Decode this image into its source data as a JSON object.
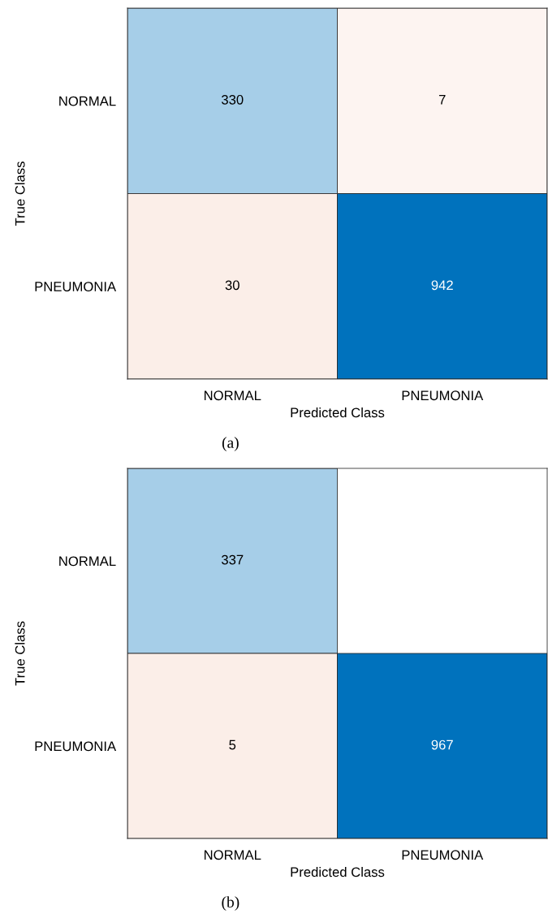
{
  "chart_data": [
    {
      "type": "heatmap",
      "title": "(a)",
      "xlabel": "Predicted Class",
      "ylabel": "True Class",
      "categories": [
        "NORMAL",
        "PNEUMONIA"
      ],
      "y_categories": [
        "NORMAL",
        "PNEUMONIA"
      ],
      "cells": [
        [
          330,
          7
        ],
        [
          30,
          942
        ]
      ],
      "data_labels": true
    },
    {
      "type": "heatmap",
      "title": "(b)",
      "xlabel": "Predicted Class",
      "ylabel": "True Class",
      "categories": [
        "NORMAL",
        "PNEUMONIA"
      ],
      "y_categories": [
        "NORMAL",
        "PNEUMONIA"
      ],
      "cells": [
        [
          337,
          null
        ],
        [
          5,
          967
        ]
      ],
      "data_labels": true
    }
  ]
}
